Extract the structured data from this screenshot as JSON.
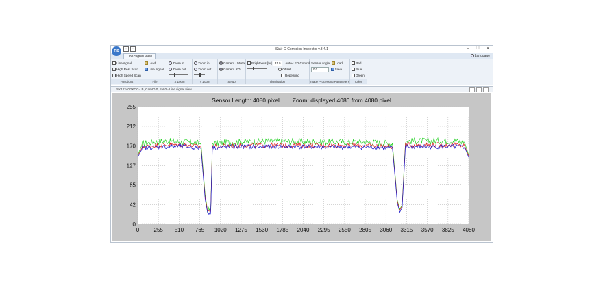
{
  "window": {
    "title": "Stair-O Corrosion Inspector v.3.4.1",
    "app_button": "RS",
    "language_label": "Language",
    "controls": [
      "–",
      "□",
      "✕"
    ]
  },
  "tabs": [
    {
      "label": "Line Signal View"
    }
  ],
  "ribbon": {
    "groups": [
      {
        "label": "Functions",
        "items": [
          "Line signal",
          "High Res. Scan",
          "High Speed Scan"
        ]
      },
      {
        "label": "File",
        "items": [
          "Load",
          "Line signal"
        ]
      },
      {
        "label": "X Zoom",
        "items": [
          "Zoom in",
          "Zoom out"
        ]
      },
      {
        "label": "Y Zoom",
        "items": [
          "Zoom in",
          "Zoom out"
        ]
      },
      {
        "label": "Setup",
        "items": [
          "Camera / Motor",
          "Camera ROI"
        ]
      },
      {
        "label": "Illumination",
        "brightness_label": "Brightness [%]",
        "brightness_value": "31.0",
        "auto_label": "Auto-LED Control",
        "auto_options": [
          "Offset",
          "Repeating"
        ]
      },
      {
        "label": "Image Processing Parameters",
        "angle_label": "Sensor angle",
        "angle_value": "0.0",
        "buttons": [
          "Load",
          "Save"
        ]
      },
      {
        "label": "Color",
        "items": [
          "Red",
          "Blue",
          "Green"
        ]
      }
    ]
  },
  "child_window": {
    "title": "SK12240GKOC-LB, CamID 0, SN 0 - Line signal view"
  },
  "colors": {
    "plot_bg": "#c6c6c6",
    "plot_area": "#ffffff",
    "red": "#e02020",
    "green": "#20d020",
    "blue": "#1a1acc"
  },
  "chart_data": {
    "type": "line",
    "title": "Sensor Length: 4080 pixel        Zoom: displayed 4080 from 4080 pixel",
    "xlim": [
      0,
      4080
    ],
    "ylim": [
      0,
      255
    ],
    "x_ticks": [
      "0",
      "255",
      "510",
      "765",
      "1020",
      "1275",
      "1530",
      "1785",
      "2040",
      "2295",
      "2550",
      "2805",
      "3060",
      "3315",
      "3570",
      "3825",
      "4080"
    ],
    "y_ticks": [
      "255",
      "212",
      "170",
      "127",
      "85",
      "42",
      "0"
    ],
    "grid": true,
    "series": [
      {
        "color": "red",
        "points": [
          [
            0,
            148
          ],
          [
            60,
            168
          ],
          [
            300,
            172
          ],
          [
            600,
            172
          ],
          [
            780,
            168
          ],
          [
            830,
            60
          ],
          [
            860,
            30
          ],
          [
            900,
            28
          ],
          [
            920,
            168
          ],
          [
            1200,
            171
          ],
          [
            1600,
            171
          ],
          [
            2000,
            171
          ],
          [
            2400,
            171
          ],
          [
            2800,
            171
          ],
          [
            3140,
            168
          ],
          [
            3200,
            50
          ],
          [
            3230,
            30
          ],
          [
            3260,
            40
          ],
          [
            3300,
            172
          ],
          [
            3600,
            172
          ],
          [
            3900,
            172
          ],
          [
            4030,
            170
          ],
          [
            4080,
            148
          ]
        ]
      },
      {
        "color": "green",
        "points": [
          [
            0,
            150
          ],
          [
            60,
            175
          ],
          [
            300,
            180
          ],
          [
            600,
            178
          ],
          [
            780,
            175
          ],
          [
            830,
            65
          ],
          [
            860,
            32
          ],
          [
            900,
            30
          ],
          [
            920,
            175
          ],
          [
            1200,
            178
          ],
          [
            1600,
            180
          ],
          [
            2000,
            179
          ],
          [
            2400,
            178
          ],
          [
            2800,
            178
          ],
          [
            3140,
            175
          ],
          [
            3200,
            52
          ],
          [
            3230,
            32
          ],
          [
            3260,
            42
          ],
          [
            3300,
            180
          ],
          [
            3600,
            180
          ],
          [
            3900,
            181
          ],
          [
            4030,
            177
          ],
          [
            4080,
            150
          ]
        ]
      },
      {
        "color": "blue",
        "points": [
          [
            0,
            145
          ],
          [
            60,
            165
          ],
          [
            300,
            168
          ],
          [
            600,
            168
          ],
          [
            780,
            165
          ],
          [
            830,
            55
          ],
          [
            860,
            26
          ],
          [
            900,
            24
          ],
          [
            920,
            165
          ],
          [
            1200,
            168
          ],
          [
            1600,
            168
          ],
          [
            2000,
            168
          ],
          [
            2400,
            167
          ],
          [
            2800,
            167
          ],
          [
            3140,
            165
          ],
          [
            3200,
            46
          ],
          [
            3230,
            26
          ],
          [
            3260,
            36
          ],
          [
            3300,
            168
          ],
          [
            3600,
            168
          ],
          [
            3900,
            168
          ],
          [
            4030,
            167
          ],
          [
            4080,
            145
          ]
        ]
      }
    ]
  }
}
